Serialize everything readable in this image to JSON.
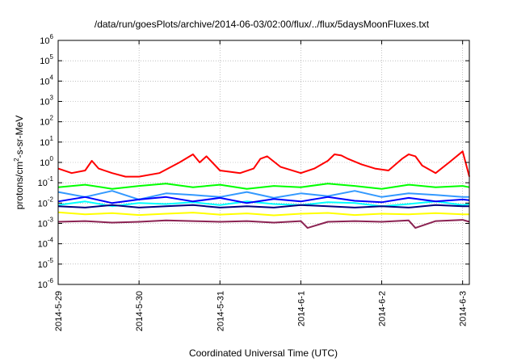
{
  "chart_data": {
    "type": "line",
    "title": "/data/run/goesPlots/archive/2014-06-03/02:00/flux/../flux/5daysMoonFluxes.txt",
    "xlabel": "Coordinated Universal Time (UTC)",
    "ylabel": {
      "prefix": "protons/cm",
      "sup": "2",
      "suffix": "-s-sr-MeV"
    },
    "y_scale": "log",
    "ylim": [
      1e-06,
      1000000.0
    ],
    "y_ticks": [
      {
        "base": "10",
        "exp": "-6",
        "value": 1e-06
      },
      {
        "base": "10",
        "exp": "-5",
        "value": 1e-05
      },
      {
        "base": "10",
        "exp": "-4",
        "value": 0.0001
      },
      {
        "base": "10",
        "exp": "-3",
        "value": 0.001
      },
      {
        "base": "10",
        "exp": "-2",
        "value": 0.01
      },
      {
        "base": "10",
        "exp": "-1",
        "value": 0.1
      },
      {
        "base": "10",
        "exp": "0",
        "value": 1
      },
      {
        "base": "10",
        "exp": "1",
        "value": 10
      },
      {
        "base": "10",
        "exp": "2",
        "value": 100
      },
      {
        "base": "10",
        "exp": "3",
        "value": 1000
      },
      {
        "base": "10",
        "exp": "4",
        "value": 10000
      },
      {
        "base": "10",
        "exp": "5",
        "value": 100000
      },
      {
        "base": "10",
        "exp": "6",
        "value": 1000000
      }
    ],
    "xlim": [
      "2014-05-29 00:00",
      "2014-06-03 02:00"
    ],
    "x_ticks": [
      {
        "label": "2014-5-29",
        "value": "2014-05-29"
      },
      {
        "label": "2014-5-30",
        "value": "2014-05-30"
      },
      {
        "label": "2014-5-31",
        "value": "2014-05-31"
      },
      {
        "label": "2014-6-1",
        "value": "2014-06-01"
      },
      {
        "label": "2014-6-2",
        "value": "2014-06-02"
      },
      {
        "label": "2014-6-3",
        "value": "2014-06-03"
      }
    ],
    "grid": true,
    "legend": "none",
    "series": [
      {
        "color": "#ff0000",
        "x_hours": [
          0,
          4,
          8,
          10,
          12,
          16,
          20,
          24,
          30,
          36,
          40,
          42,
          44,
          48,
          54,
          58,
          60,
          62,
          66,
          72,
          76,
          80,
          82,
          84,
          86,
          90,
          94,
          98,
          102,
          104,
          106,
          108,
          112,
          116,
          120,
          122
        ],
        "values": [
          0.5,
          0.3,
          0.4,
          1.2,
          0.5,
          0.3,
          0.2,
          0.2,
          0.3,
          1.0,
          2.5,
          1.0,
          2.0,
          0.4,
          0.3,
          0.5,
          1.5,
          2.0,
          0.6,
          0.3,
          0.5,
          1.2,
          2.5,
          2.2,
          1.5,
          0.8,
          0.5,
          0.4,
          1.5,
          2.5,
          2.0,
          0.7,
          0.3,
          1.0,
          3.5,
          0.2
        ]
      },
      {
        "color": "#00ff00",
        "x_hours": [
          0,
          8,
          16,
          24,
          32,
          40,
          48,
          56,
          64,
          72,
          80,
          88,
          96,
          104,
          112,
          120,
          122
        ],
        "values": [
          0.06,
          0.08,
          0.05,
          0.07,
          0.09,
          0.06,
          0.08,
          0.05,
          0.07,
          0.06,
          0.09,
          0.07,
          0.05,
          0.08,
          0.06,
          0.07,
          0.06
        ]
      },
      {
        "color": "#00ffff",
        "x_hours": [
          0,
          8,
          16,
          24,
          32,
          40,
          48,
          56,
          64,
          72,
          80,
          88,
          96,
          104,
          112,
          120,
          122
        ],
        "values": [
          0.008,
          0.012,
          0.007,
          0.01,
          0.009,
          0.011,
          0.008,
          0.012,
          0.009,
          0.008,
          0.011,
          0.01,
          0.007,
          0.009,
          0.012,
          0.008,
          0.009
        ]
      },
      {
        "color": "#3399ff",
        "x_hours": [
          0,
          8,
          16,
          24,
          32,
          40,
          48,
          56,
          64,
          72,
          80,
          88,
          96,
          104,
          112,
          120,
          122
        ],
        "values": [
          0.035,
          0.02,
          0.04,
          0.015,
          0.03,
          0.025,
          0.02,
          0.035,
          0.018,
          0.03,
          0.022,
          0.04,
          0.02,
          0.03,
          0.025,
          0.02,
          0.02
        ]
      },
      {
        "color": "#0000ff",
        "x_hours": [
          0,
          8,
          16,
          24,
          32,
          40,
          48,
          56,
          64,
          72,
          80,
          88,
          96,
          104,
          112,
          120,
          122
        ],
        "values": [
          0.012,
          0.02,
          0.01,
          0.015,
          0.02,
          0.012,
          0.018,
          0.01,
          0.016,
          0.012,
          0.02,
          0.013,
          0.011,
          0.018,
          0.012,
          0.015,
          0.014
        ]
      },
      {
        "color": "#000080",
        "x_hours": [
          0,
          8,
          16,
          24,
          32,
          40,
          48,
          56,
          64,
          72,
          80,
          88,
          96,
          104,
          112,
          120,
          122
        ],
        "values": [
          0.007,
          0.006,
          0.008,
          0.006,
          0.007,
          0.008,
          0.006,
          0.007,
          0.006,
          0.008,
          0.007,
          0.006,
          0.007,
          0.006,
          0.008,
          0.007,
          0.007
        ]
      },
      {
        "color": "#ffff00",
        "x_hours": [
          0,
          8,
          16,
          24,
          32,
          40,
          48,
          56,
          64,
          72,
          80,
          88,
          96,
          104,
          112,
          120,
          122
        ],
        "values": [
          0.0035,
          0.0028,
          0.0032,
          0.0026,
          0.003,
          0.0034,
          0.0027,
          0.0031,
          0.0025,
          0.003,
          0.0033,
          0.0026,
          0.003,
          0.0028,
          0.0032,
          0.0028,
          0.0028
        ]
      },
      {
        "color": "#8b2252",
        "x_hours": [
          0,
          8,
          16,
          24,
          32,
          40,
          48,
          56,
          64,
          72,
          74,
          80,
          88,
          96,
          104,
          106,
          112,
          120,
          122
        ],
        "values": [
          0.0012,
          0.0013,
          0.0011,
          0.0012,
          0.0014,
          0.0013,
          0.0012,
          0.0013,
          0.0011,
          0.0013,
          0.0006,
          0.0012,
          0.0013,
          0.0012,
          0.0014,
          0.0006,
          0.0013,
          0.0015,
          0.0012
        ]
      }
    ]
  }
}
